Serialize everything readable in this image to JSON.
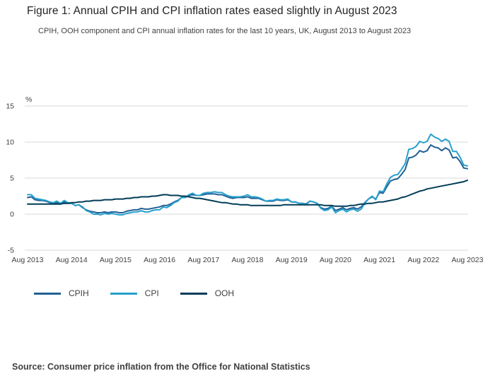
{
  "header": {
    "title": "Figure 1: Annual CPIH and CPI inflation rates eased slightly in August 2023",
    "subtitle": "CPIH, OOH component and CPI annual inflation rates for the last 10 years, UK, August 2013 to August 2023"
  },
  "footer": {
    "source": "Source: Consumer price inflation from the Office for National Statistics"
  },
  "chart_data": {
    "type": "line",
    "title": "Figure 1: Annual CPIH and CPI inflation rates eased slightly in August 2023",
    "subtitle": "CPIH, OOH component and CPI annual inflation rates for the last 10 years, UK, August 2013 to August 2023",
    "unit": "%",
    "y_axis_label": "%",
    "xlabel": "",
    "ylabel": "%",
    "x_start": "Aug 2013",
    "x_end": "Aug 2023",
    "frequency": "monthly",
    "x_tick_labels": [
      "Aug 2013",
      "Aug 2014",
      "Aug 2015",
      "Aug 2016",
      "Aug 2017",
      "Aug 2018",
      "Aug 2019",
      "Aug 2020",
      "Aug 2021",
      "Aug 2022",
      "Aug 2023"
    ],
    "y_ticks": [
      -5,
      0,
      5,
      10,
      15
    ],
    "ylim": [
      -5,
      15
    ],
    "grid": "horizontal",
    "gridline_color": "#d9d9d9",
    "legend_position": "bottom-left",
    "series": [
      {
        "name": "CPIH",
        "color": "#206095",
        "values": [
          2.3,
          2.4,
          2.0,
          1.9,
          1.9,
          1.8,
          1.6,
          1.5,
          1.6,
          1.4,
          1.7,
          1.5,
          1.5,
          1.2,
          1.3,
          0.9,
          0.6,
          0.4,
          0.3,
          0.2,
          0.2,
          0.3,
          0.2,
          0.3,
          0.3,
          0.2,
          0.2,
          0.4,
          0.5,
          0.6,
          0.6,
          0.8,
          0.7,
          0.7,
          0.8,
          0.9,
          1.0,
          1.2,
          1.2,
          1.4,
          1.7,
          1.9,
          2.3,
          2.3,
          2.6,
          2.7,
          2.6,
          2.6,
          2.7,
          2.8,
          2.8,
          2.8,
          2.7,
          2.7,
          2.5,
          2.3,
          2.2,
          2.3,
          2.3,
          2.3,
          2.4,
          2.2,
          2.2,
          2.2,
          2.0,
          1.8,
          1.8,
          1.8,
          2.0,
          1.9,
          1.9,
          2.0,
          1.7,
          1.7,
          1.5,
          1.5,
          1.4,
          1.8,
          1.7,
          1.5,
          0.9,
          0.7,
          0.8,
          1.1,
          0.5,
          0.7,
          0.9,
          0.6,
          0.8,
          0.9,
          0.7,
          1.0,
          1.6,
          2.1,
          2.4,
          2.1,
          3.0,
          2.9,
          3.8,
          4.6,
          4.8,
          4.9,
          5.5,
          6.2,
          7.8,
          7.9,
          8.2,
          8.8,
          8.6,
          8.8,
          9.6,
          9.3,
          9.2,
          8.8,
          9.2,
          8.9,
          7.8,
          7.9,
          7.3,
          6.4,
          6.3
        ]
      },
      {
        "name": "CPI",
        "color": "#27A0CC",
        "values": [
          2.7,
          2.7,
          2.2,
          2.1,
          2.0,
          1.9,
          1.7,
          1.6,
          1.8,
          1.5,
          1.9,
          1.6,
          1.5,
          1.2,
          1.3,
          1.0,
          0.5,
          0.3,
          0.0,
          0.0,
          -0.1,
          0.1,
          0.0,
          0.1,
          0.0,
          -0.1,
          -0.1,
          0.1,
          0.2,
          0.3,
          0.3,
          0.5,
          0.3,
          0.3,
          0.5,
          0.6,
          0.6,
          1.0,
          0.9,
          1.2,
          1.6,
          1.8,
          2.3,
          2.3,
          2.7,
          2.9,
          2.6,
          2.6,
          2.9,
          3.0,
          3.0,
          3.1,
          3.0,
          3.0,
          2.7,
          2.5,
          2.4,
          2.4,
          2.4,
          2.5,
          2.7,
          2.4,
          2.4,
          2.3,
          2.1,
          1.8,
          1.9,
          1.9,
          2.1,
          2.0,
          2.0,
          2.1,
          1.7,
          1.7,
          1.5,
          1.5,
          1.3,
          1.8,
          1.7,
          1.5,
          0.8,
          0.5,
          0.6,
          1.0,
          0.2,
          0.5,
          0.7,
          0.3,
          0.6,
          0.7,
          0.4,
          0.7,
          1.5,
          2.1,
          2.5,
          2.0,
          3.2,
          3.1,
          4.2,
          5.1,
          5.4,
          5.5,
          6.2,
          7.0,
          9.0,
          9.1,
          9.4,
          10.1,
          9.9,
          10.1,
          11.1,
          10.7,
          10.5,
          10.1,
          10.4,
          10.1,
          8.7,
          8.7,
          7.9,
          6.8,
          6.7
        ]
      },
      {
        "name": "OOH",
        "color": "#003C57",
        "values": [
          1.4,
          1.4,
          1.4,
          1.4,
          1.4,
          1.4,
          1.4,
          1.4,
          1.4,
          1.4,
          1.5,
          1.5,
          1.6,
          1.6,
          1.7,
          1.7,
          1.8,
          1.8,
          1.9,
          1.9,
          1.9,
          2.0,
          2.0,
          2.0,
          2.1,
          2.1,
          2.1,
          2.2,
          2.2,
          2.3,
          2.3,
          2.4,
          2.4,
          2.4,
          2.5,
          2.5,
          2.6,
          2.7,
          2.7,
          2.6,
          2.6,
          2.6,
          2.5,
          2.5,
          2.4,
          2.3,
          2.2,
          2.2,
          2.1,
          2.0,
          1.9,
          1.8,
          1.7,
          1.6,
          1.6,
          1.5,
          1.4,
          1.4,
          1.3,
          1.3,
          1.3,
          1.2,
          1.2,
          1.2,
          1.2,
          1.2,
          1.2,
          1.2,
          1.2,
          1.2,
          1.3,
          1.3,
          1.3,
          1.3,
          1.3,
          1.3,
          1.3,
          1.3,
          1.3,
          1.3,
          1.3,
          1.2,
          1.2,
          1.2,
          1.1,
          1.1,
          1.1,
          1.1,
          1.2,
          1.2,
          1.3,
          1.4,
          1.4,
          1.5,
          1.5,
          1.6,
          1.7,
          1.7,
          1.8,
          1.9,
          2.0,
          2.1,
          2.3,
          2.4,
          2.6,
          2.8,
          3.0,
          3.2,
          3.3,
          3.5,
          3.6,
          3.7,
          3.8,
          3.9,
          4.0,
          4.1,
          4.2,
          4.3,
          4.4,
          4.5,
          4.7
        ]
      }
    ]
  }
}
